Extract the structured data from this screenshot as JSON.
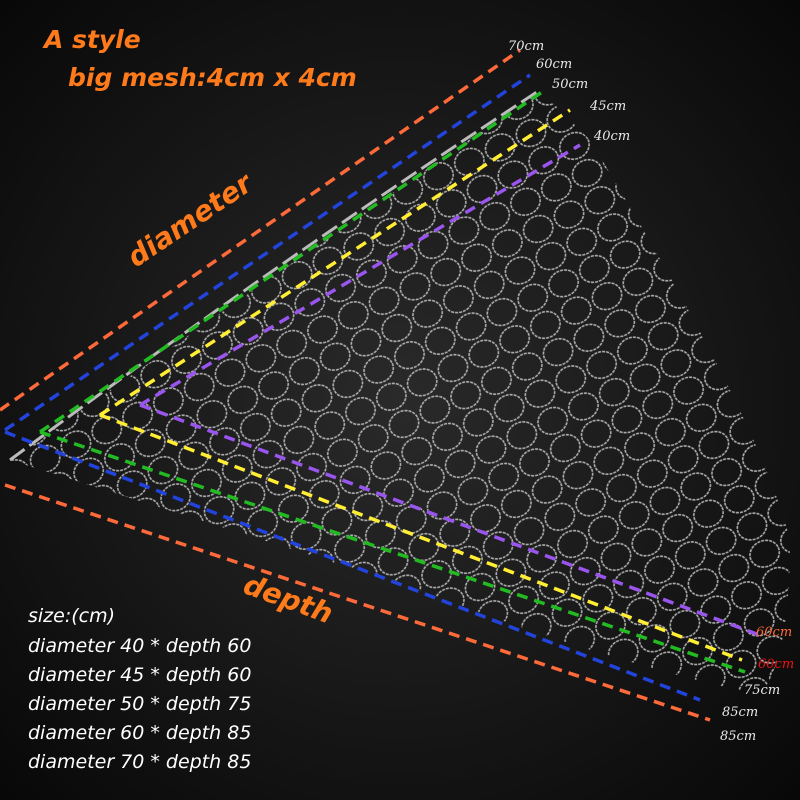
{
  "header": {
    "title": "A style",
    "subtitle": "big mesh:4cm x 4cm"
  },
  "axis_labels": {
    "diameter": "diameter",
    "depth": "depth"
  },
  "diameter_labels": [
    "70cm",
    "60cm",
    "50cm",
    "45cm",
    "40cm"
  ],
  "depth_labels": [
    "60cm",
    "60cm",
    "75cm",
    "85cm",
    "85cm"
  ],
  "size_table": {
    "heading": "size:(cm)",
    "rows": [
      "diameter 40 * depth 60",
      "diameter 45 * depth 60",
      "diameter 50 * depth 75",
      "diameter 60 * depth 85",
      "diameter 70 * depth 85"
    ]
  }
}
